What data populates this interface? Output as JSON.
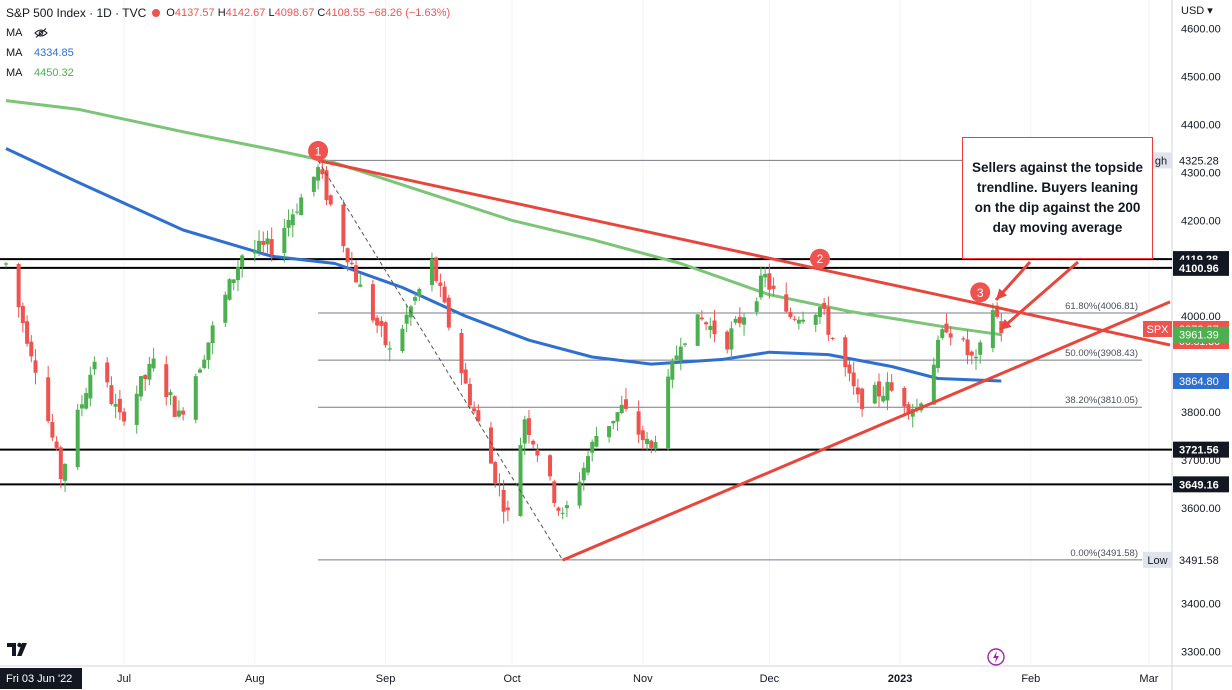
{
  "header": {
    "title": "S&P 500 Index · 1D · TVC",
    "open_label": "O",
    "open": "4137.57",
    "high_label": "H",
    "high": "4142.67",
    "low_label": "L",
    "low": "4098.67",
    "close_label": "C",
    "close": "4108.55",
    "change": "−68.26 (−1.63%)",
    "ma_rows": [
      {
        "label": "MA",
        "value": ""
      },
      {
        "label": "MA",
        "value": "4334.85"
      },
      {
        "label": "MA",
        "value": "4450.32"
      }
    ]
  },
  "colors": {
    "up": "#4caf50",
    "down": "#ef5350",
    "ma_fast": "#2f6fd0",
    "ma_slow": "#7cc576",
    "trend": "#e8453c",
    "annotation_border": "#ef3b3b"
  },
  "annotation": {
    "text": "Sellers against the topside trendline. Buyers leaning on the dip against the 200 day moving average",
    "markers": [
      "1",
      "2",
      "3"
    ]
  },
  "chart_data": {
    "type": "candlestick",
    "y_axis": {
      "unit": "USD",
      "ticks": [
        4600,
        4500,
        4400,
        4300,
        4200,
        4000,
        3800,
        3700,
        3600,
        3400,
        3300
      ],
      "ylim": [
        3270,
        4660
      ]
    },
    "x_axis": {
      "ticks": [
        "Jul",
        "Aug",
        "Sep",
        "Oct",
        "Nov",
        "Dec",
        "2023",
        "Feb",
        "Mar"
      ],
      "cursor_label": "Fri 03 Jun '22",
      "xlim": [
        "2022-06-03",
        "2023-03-06"
      ]
    },
    "horizontal_levels": [
      {
        "value": 4119.28,
        "label": "4119.28"
      },
      {
        "value": 4100.96,
        "label": "4100.96"
      },
      {
        "value": 3721.56,
        "label": "3721.56"
      },
      {
        "value": 3649.16,
        "label": "3649.16"
      }
    ],
    "price_labels": [
      {
        "value": 4325.28,
        "label": "4325.28",
        "tag": "gh"
      },
      {
        "value": 3973.37,
        "label": "3973.37",
        "tag": "SPX",
        "sub": "06:31:36"
      },
      {
        "value": 3961.39,
        "label": "3961.39",
        "tag": ""
      },
      {
        "value": 3864.8,
        "label": "3864.80",
        "tag": ""
      },
      {
        "value": 3491.58,
        "label": "3491.58",
        "tag": "Low"
      }
    ],
    "fibonacci": {
      "start": "2022-08-16",
      "levels": [
        {
          "value": 4006.81,
          "label": "61.80%(4006.81)"
        },
        {
          "value": 3908.43,
          "label": "50.00%(3908.43)"
        },
        {
          "value": 3810.05,
          "label": "38.20%(3810.05)"
        },
        {
          "value": 3491.58,
          "label": "0.00%(3491.58)"
        }
      ]
    },
    "trendlines": [
      {
        "name": "",
        "points": [
          [
            "2022-08-16",
            4325
          ],
          [
            "2023-03-06",
            3940
          ]
        ]
      },
      {
        "name": "",
        "points": [
          [
            "2022-10-13",
            3491
          ],
          [
            "2023-03-06",
            4030
          ]
        ]
      }
    ],
    "dashed_line": {
      "points": [
        [
          "2022-08-16",
          4325
        ],
        [
          "2022-10-13",
          3491
        ]
      ]
    },
    "markers": [
      {
        "label": "1",
        "date": "2022-08-16",
        "price": 4345
      },
      {
        "label": "2",
        "date": "2022-12-13",
        "price": 4120
      },
      {
        "label": "3",
        "date": "2023-01-20",
        "price": 4050
      }
    ],
    "ma_series": [
      {
        "name": "",
        "period_days": 100,
        "points": [
          [
            "2022-06-03",
            4350
          ],
          [
            "2022-06-20",
            4280
          ],
          [
            "2022-07-15",
            4180
          ],
          [
            "2022-08-05",
            4125
          ],
          [
            "2022-08-20",
            4110
          ],
          [
            "2022-09-05",
            4060
          ],
          [
            "2022-09-20",
            4000
          ],
          [
            "2022-10-05",
            3950
          ],
          [
            "2022-10-20",
            3915
          ],
          [
            "2022-11-03",
            3900
          ],
          [
            "2022-11-20",
            3910
          ],
          [
            "2022-12-01",
            3925
          ],
          [
            "2022-12-15",
            3920
          ],
          [
            "2022-12-30",
            3895
          ],
          [
            "2023-01-10",
            3870
          ],
          [
            "2023-01-25",
            3864.8
          ]
        ]
      },
      {
        "name": "",
        "period_days": 200,
        "points": [
          [
            "2022-06-03",
            4450
          ],
          [
            "2022-06-20",
            4432
          ],
          [
            "2022-07-15",
            4385
          ],
          [
            "2022-08-05",
            4348
          ],
          [
            "2022-08-20",
            4320
          ],
          [
            "2022-09-10",
            4260
          ],
          [
            "2022-10-01",
            4200
          ],
          [
            "2022-10-20",
            4160
          ],
          [
            "2022-11-10",
            4110
          ],
          [
            "2022-12-01",
            4045
          ],
          [
            "2022-12-20",
            4010
          ],
          [
            "2023-01-10",
            3980
          ],
          [
            "2023-01-25",
            3961.4
          ]
        ]
      }
    ]
  }
}
